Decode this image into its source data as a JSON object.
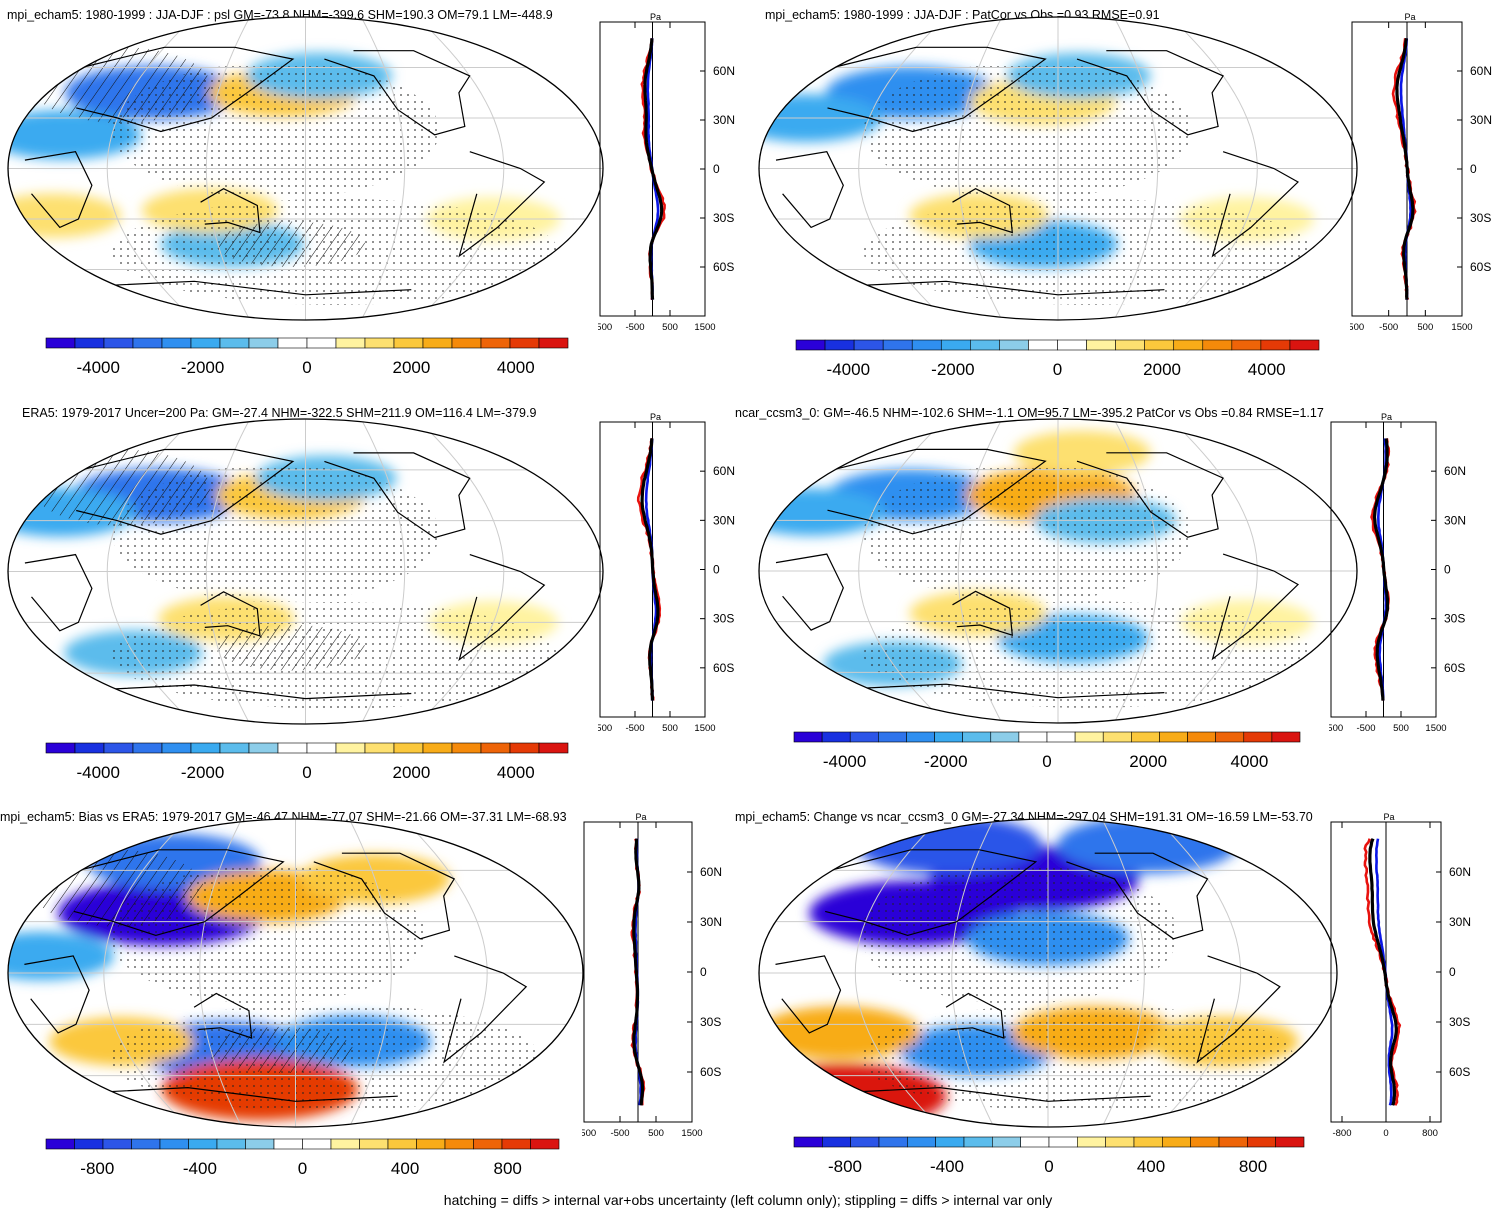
{
  "footer": "hatching = diffs > internal var+obs uncertainty (left column only); stippling = diffs > internal var only",
  "profile_unit": "Pa",
  "lat_ticks": [
    "60N",
    "30N",
    "0",
    "30S",
    "60S"
  ],
  "colors": {
    "blue": "#0a16e6",
    "red": "#e8120e",
    "black": "#000000",
    "land": "#000000",
    "grid": "#cccccc"
  },
  "chart_data": [
    {
      "type": "heatmap",
      "title": "mpi_echam5: 1980-1999 : JJA-DJF : psl GM=-73.8 NHM=-399.6 SHM=190.3 OM=79.1 LM=-448.9",
      "colorbar_ticks": [
        "-4000",
        "-2000",
        "0",
        "2000",
        "4000"
      ],
      "colorbar_range": [
        -5000,
        5000
      ],
      "profile_xticks": [
        "-1500",
        "-500",
        "500",
        "1500"
      ],
      "profile_xrange": [
        -1500,
        1500
      ],
      "hatched": true,
      "anomalies": [
        {
          "lon": 75,
          "lat": 45,
          "value": -2800
        },
        {
          "lon": 30,
          "lat": 20,
          "value": -2000
        },
        {
          "lon": 165,
          "lat": 45,
          "value": 1800
        },
        {
          "lon": -170,
          "lat": 55,
          "value": -1600
        },
        {
          "lon": 130,
          "lat": -45,
          "value": -1500
        },
        {
          "lon": 20,
          "lat": -28,
          "value": 1200
        },
        {
          "lon": -60,
          "lat": -30,
          "value": 1100
        },
        {
          "lon": 120,
          "lat": -25,
          "value": 1200
        }
      ]
    },
    {
      "type": "heatmap",
      "title": "mpi_echam5: 1980-1999 : JJA-DJF : PatCor vs Obs =0.93 RMSE=0.91",
      "colorbar_ticks": [
        "-4000",
        "-2000",
        "0",
        "2000",
        "4000"
      ],
      "colorbar_range": [
        -5000,
        5000
      ],
      "profile_xticks": [
        "-1500",
        "-500",
        "500",
        "1500"
      ],
      "profile_xrange": [
        -1500,
        1500
      ],
      "hatched": false,
      "anomalies": [
        {
          "lon": 80,
          "lat": 45,
          "value": -2600
        },
        {
          "lon": 20,
          "lat": 30,
          "value": -1800
        },
        {
          "lon": 170,
          "lat": 40,
          "value": 1600
        },
        {
          "lon": -165,
          "lat": 55,
          "value": -1500
        },
        {
          "lon": 170,
          "lat": -45,
          "value": -1700
        },
        {
          "lon": 130,
          "lat": -28,
          "value": 1300
        },
        {
          "lon": -60,
          "lat": -30,
          "value": 1100
        }
      ]
    },
    {
      "type": "heatmap",
      "title": "ERA5: 1979-2017 Uncer=200 Pa: GM=-27.4 NHM=-322.5 SHM=211.9 OM=116.4 LM=-379.9",
      "colorbar_ticks": [
        "-4000",
        "-2000",
        "0",
        "2000",
        "4000"
      ],
      "colorbar_range": [
        -5000,
        5000
      ],
      "profile_xticks": [
        "-1500",
        "-500",
        "500",
        "1500"
      ],
      "profile_xrange": [
        -1500,
        1500
      ],
      "hatched": true,
      "anomalies": [
        {
          "lon": 80,
          "lat": 45,
          "value": -2800
        },
        {
          "lon": 20,
          "lat": 35,
          "value": -1900
        },
        {
          "lon": 170,
          "lat": 45,
          "value": 1800
        },
        {
          "lon": -165,
          "lat": 55,
          "value": -1400
        },
        {
          "lon": 130,
          "lat": -28,
          "value": 1200
        },
        {
          "lon": 60,
          "lat": -48,
          "value": -1300
        },
        {
          "lon": -60,
          "lat": -30,
          "value": 900
        }
      ]
    },
    {
      "type": "heatmap",
      "title": "ncar_ccsm3_0: GM=-46.5 NHM=-102.6 SHM=-1.1 OM=95.7 LM=-395.2 PatCor vs Obs =0.84 RMSE=1.17",
      "colorbar_ticks": [
        "-4000",
        "-2000",
        "0",
        "2000",
        "4000"
      ],
      "colorbar_range": [
        -5000,
        5000
      ],
      "profile_xticks": [
        "-1500",
        "-500",
        "500",
        "1500"
      ],
      "profile_xrange": [
        -1500,
        1500
      ],
      "hatched": false,
      "anomalies": [
        {
          "lon": 80,
          "lat": 45,
          "value": -2400
        },
        {
          "lon": 20,
          "lat": 35,
          "value": -1700
        },
        {
          "lon": 175,
          "lat": 45,
          "value": 2600
        },
        {
          "lon": -150,
          "lat": 30,
          "value": -1400
        },
        {
          "lon": -170,
          "lat": -40,
          "value": -1800
        },
        {
          "lon": 60,
          "lat": -55,
          "value": -1300
        },
        {
          "lon": 130,
          "lat": -25,
          "value": 1200
        },
        {
          "lon": -60,
          "lat": -30,
          "value": 1000
        },
        {
          "lon": -160,
          "lat": 70,
          "value": 1200
        }
      ]
    },
    {
      "type": "heatmap",
      "title": "mpi_echam5: Bias vs ERA5: 1979-2017 GM=-46.47 NHM=-77.07 SHM=-21.66 OM=-37.31 LM=-68.93",
      "colorbar_ticks": [
        "-800",
        "-400",
        "0",
        "400",
        "800"
      ],
      "colorbar_range": [
        -1000,
        1000
      ],
      "profile_xticks": [
        "-1500",
        "-500",
        "500",
        "1500"
      ],
      "profile_xrange": [
        -1500,
        1500
      ],
      "hatched": true,
      "anomalies": [
        {
          "lon": 90,
          "lat": 35,
          "value": -900
        },
        {
          "lon": 80,
          "lat": 65,
          "value": -600
        },
        {
          "lon": 130,
          "lat": -45,
          "value": -650
        },
        {
          "lon": 150,
          "lat": -68,
          "value": 800
        },
        {
          "lon": 160,
          "lat": 45,
          "value": 500
        },
        {
          "lon": 20,
          "lat": 10,
          "value": -350
        },
        {
          "lon": -140,
          "lat": -40,
          "value": -450
        },
        {
          "lon": -120,
          "lat": 55,
          "value": 400
        },
        {
          "lon": 60,
          "lat": -40,
          "value": 350
        }
      ]
    },
    {
      "type": "heatmap",
      "title": "mpi_echam5: Change vs ncar_ccsm3_0 GM=-27.34 NHM=-297.04 SHM=191.31 OM=-16.59 LM=-53.70",
      "colorbar_ticks": [
        "-800",
        "-400",
        "0",
        "400",
        "800"
      ],
      "colorbar_range": [
        -1000,
        1000
      ],
      "profile_xticks": [
        "-800",
        "0",
        "800"
      ],
      "profile_xrange": [
        -1000,
        1000
      ],
      "hatched": false,
      "anomalies": [
        {
          "lon": 170,
          "lat": 55,
          "value": -900
        },
        {
          "lon": 90,
          "lat": 75,
          "value": -700
        },
        {
          "lon": -90,
          "lat": 75,
          "value": -650
        },
        {
          "lon": 90,
          "lat": 35,
          "value": -900
        },
        {
          "lon": 180,
          "lat": 20,
          "value": -500
        },
        {
          "lon": 0,
          "lat": -72,
          "value": 900
        },
        {
          "lon": 130,
          "lat": -45,
          "value": -450
        },
        {
          "lon": -150,
          "lat": -35,
          "value": 500
        },
        {
          "lon": 40,
          "lat": -35,
          "value": 500
        },
        {
          "lon": -60,
          "lat": -40,
          "value": 400
        }
      ]
    }
  ]
}
